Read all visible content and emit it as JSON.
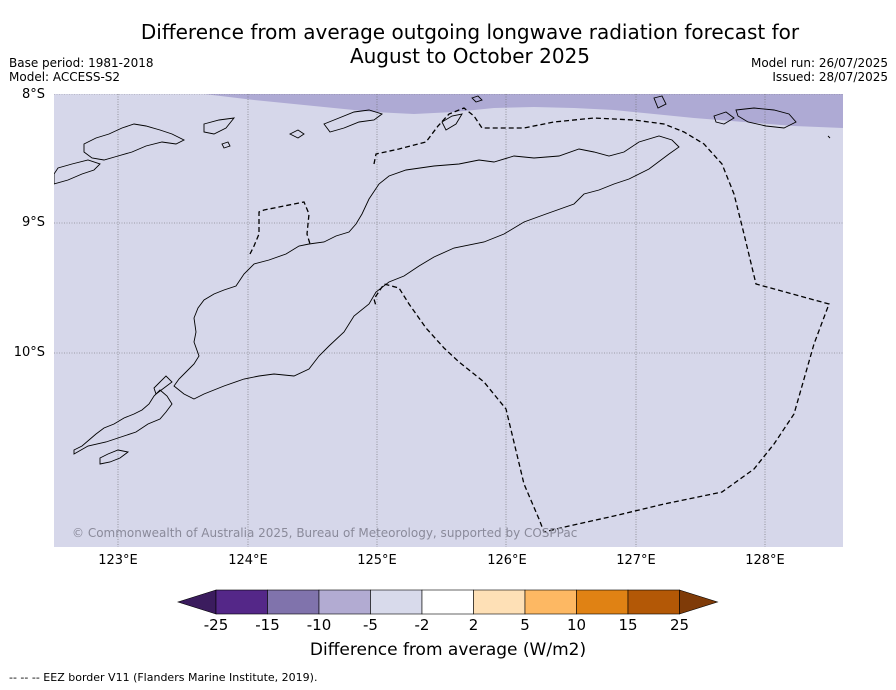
{
  "title": {
    "line1": "Difference from average outgoing longwave radiation forecast for",
    "line2": "August to October 2025"
  },
  "meta": {
    "base_period": "Base period: 1981-2018",
    "model": "Model: ACCESS-S2",
    "model_run": "Model run: 26/07/2025",
    "issued": "Issued: 28/07/2025"
  },
  "map": {
    "lat_labels": [
      "8°S",
      "9°S",
      "10°S"
    ],
    "lon_labels": [
      "123°E",
      "124°E",
      "125°E",
      "126°E",
      "127°E",
      "128°E"
    ],
    "background_color": "#d6d7ea",
    "anomaly_color": "#aeaad4",
    "copyright": "© Commonwealth of Australia 2025, Bureau of Meteorology, supported by COSPPac"
  },
  "colorbar": {
    "ticks": [
      "-25",
      "-15",
      "-10",
      "-5",
      "-2",
      "2",
      "5",
      "10",
      "15",
      "25"
    ],
    "colors": [
      "#3b1c5e",
      "#542788",
      "#8073ac",
      "#b2abd2",
      "#d8daeb",
      "#ffffff",
      "#fee0b6",
      "#fdb863",
      "#e08214",
      "#b35806",
      "#7f3b08"
    ],
    "label": "Difference from average (W/m2)"
  },
  "footnote": "-- -- -- EEZ border V11 (Flanders Marine Institute, 2019)."
}
